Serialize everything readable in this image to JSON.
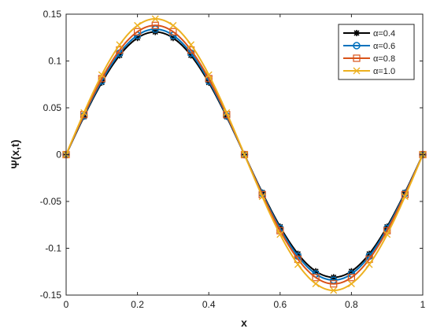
{
  "chart_data": {
    "type": "line",
    "xlabel": "x",
    "ylabel": "Ψ(x,t)",
    "xlim": [
      0,
      1
    ],
    "ylim": [
      -0.15,
      0.15
    ],
    "x_ticks": [
      "0",
      "0.2",
      "0.4",
      "0.6",
      "0.8",
      "1"
    ],
    "y_ticks": [
      "-0.15",
      "-0.1",
      "-0.05",
      "0",
      "0.05",
      "0.1",
      "0.15"
    ],
    "grid": false,
    "legend_position": "top-right",
    "x": [
      0,
      0.05,
      0.1,
      0.15,
      0.2,
      0.25,
      0.3,
      0.35,
      0.4,
      0.45,
      0.5,
      0.55,
      0.6,
      0.65,
      0.7,
      0.75,
      0.8,
      0.85,
      0.9,
      0.95,
      1.0
    ],
    "series": [
      {
        "name": "α=0.4",
        "color": "#000000",
        "marker": "asterisk",
        "values": [
          0,
          0.0405,
          0.077,
          0.106,
          0.1246,
          0.131,
          0.1246,
          0.106,
          0.077,
          0.0405,
          0,
          -0.0405,
          -0.077,
          -0.106,
          -0.1246,
          -0.131,
          -0.1246,
          -0.106,
          -0.077,
          -0.0405,
          0
        ]
      },
      {
        "name": "α=0.6",
        "color": "#0072BD",
        "marker": "circle",
        "values": [
          0,
          0.0414,
          0.0787,
          0.1084,
          0.1274,
          0.134,
          0.1274,
          0.1084,
          0.0787,
          0.0414,
          0,
          -0.0414,
          -0.0787,
          -0.1084,
          -0.1274,
          -0.134,
          -0.1274,
          -0.1084,
          -0.0787,
          -0.0414,
          0
        ]
      },
      {
        "name": "α=0.8",
        "color": "#D95319",
        "marker": "square",
        "values": [
          0,
          0.0427,
          0.0812,
          0.1117,
          0.1313,
          0.138,
          0.1313,
          0.1117,
          0.0812,
          0.0427,
          0,
          -0.0427,
          -0.0812,
          -0.1117,
          -0.1313,
          -0.138,
          -0.1313,
          -0.1117,
          -0.0812,
          -0.0427,
          0
        ]
      },
      {
        "name": "α=1.0",
        "color": "#EDB120",
        "marker": "x",
        "values": [
          0,
          0.0448,
          0.0852,
          0.1173,
          0.1379,
          0.145,
          0.1379,
          0.1173,
          0.0852,
          0.0448,
          0,
          -0.0448,
          -0.0852,
          -0.1173,
          -0.1379,
          -0.145,
          -0.1379,
          -0.1173,
          -0.0852,
          -0.0448,
          0
        ]
      }
    ]
  }
}
